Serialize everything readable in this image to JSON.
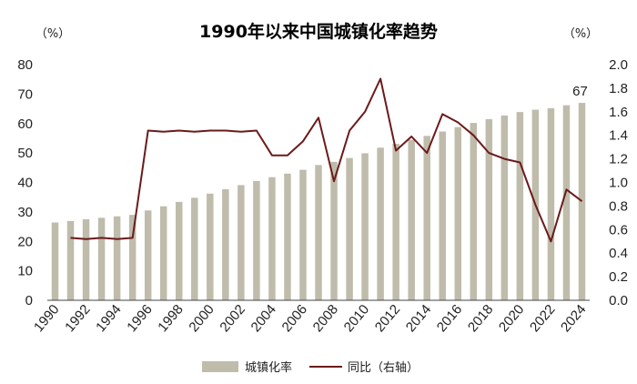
{
  "chart_data": {
    "type": "bar",
    "title": "1990年以来中国城镇化率趋势",
    "left_unit": "（%）",
    "right_unit": "（%）",
    "x": [
      1990,
      1991,
      1992,
      1993,
      1994,
      1995,
      1996,
      1997,
      1998,
      1999,
      2000,
      2001,
      2002,
      2003,
      2004,
      2005,
      2006,
      2007,
      2008,
      2009,
      2010,
      2011,
      2012,
      2013,
      2014,
      2015,
      2016,
      2017,
      2018,
      2019,
      2020,
      2021,
      2022,
      2023,
      2024
    ],
    "x_tick_labels": [
      "1990",
      "1992",
      "1994",
      "1996",
      "1998",
      "2000",
      "2002",
      "2004",
      "2006",
      "2008",
      "2010",
      "2012",
      "2014",
      "2016",
      "2018",
      "2020",
      "2022",
      "2024"
    ],
    "y_left_ticks": [
      "0",
      "10",
      "20",
      "30",
      "40",
      "50",
      "60",
      "70",
      "80"
    ],
    "y_right_ticks": [
      "0.0",
      "0.2",
      "0.4",
      "0.6",
      "0.8",
      "1.0",
      "1.2",
      "1.4",
      "1.6",
      "1.8",
      "2.0"
    ],
    "ylim_left": [
      0,
      80
    ],
    "ylim_right": [
      0,
      2.0
    ],
    "series": [
      {
        "name": "城镇化率",
        "kind": "bar",
        "axis": "left",
        "color": "#bfbcac",
        "values": [
          26.4,
          26.9,
          27.5,
          28.0,
          28.5,
          29.0,
          30.5,
          31.9,
          33.4,
          34.8,
          36.2,
          37.7,
          39.1,
          40.5,
          41.8,
          43.0,
          44.3,
          45.9,
          47.0,
          48.3,
          49.9,
          51.8,
          53.1,
          54.5,
          55.8,
          57.3,
          58.8,
          60.2,
          61.5,
          62.7,
          63.9,
          64.7,
          65.2,
          66.2,
          67.0
        ]
      },
      {
        "name": "同比（右轴）",
        "kind": "line",
        "axis": "right",
        "color": "#6b1a1a",
        "x": [
          1991,
          1992,
          1993,
          1994,
          1995,
          1996,
          1997,
          1998,
          1999,
          2000,
          2001,
          2002,
          2003,
          2004,
          2005,
          2006,
          2007,
          2008,
          2009,
          2010,
          2011,
          2012,
          2013,
          2014,
          2015,
          2016,
          2017,
          2018,
          2019,
          2020,
          2021,
          2022,
          2023,
          2024
        ],
        "values": [
          0.53,
          0.52,
          0.53,
          0.52,
          0.53,
          1.44,
          1.43,
          1.44,
          1.43,
          1.44,
          1.44,
          1.43,
          1.44,
          1.23,
          1.23,
          1.35,
          1.55,
          1.01,
          1.44,
          1.6,
          1.88,
          1.27,
          1.39,
          1.25,
          1.58,
          1.51,
          1.4,
          1.25,
          1.2,
          1.17,
          0.81,
          0.5,
          0.94,
          0.84
        ]
      }
    ],
    "data_labels": [
      {
        "series": "城镇化率",
        "x": 2024,
        "text": "67"
      }
    ],
    "grid": false,
    "legend_position": "bottom"
  }
}
